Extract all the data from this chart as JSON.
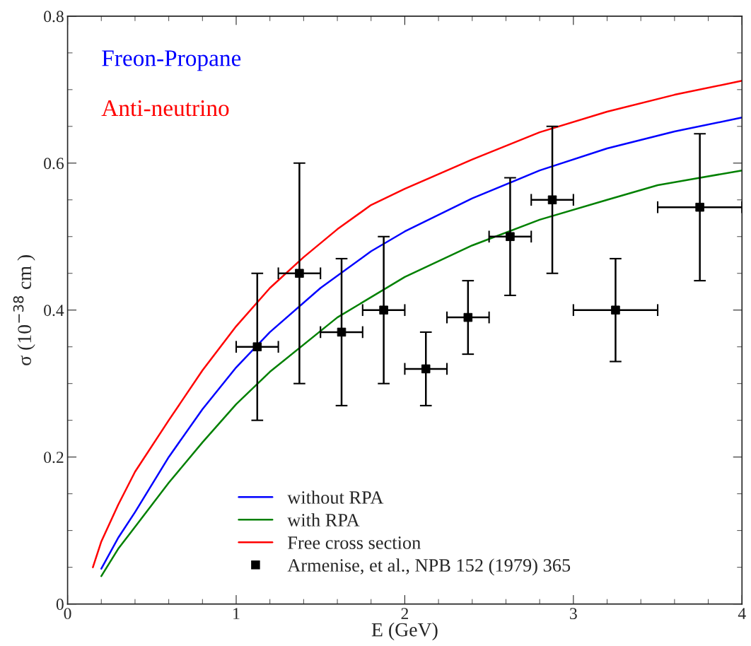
{
  "chart_data": {
    "type": "line",
    "xlabel": "E (GeV)",
    "ylabel": "σ (10$^{−38}$ cm )",
    "xlim": [
      0,
      4
    ],
    "ylim": [
      0,
      0.8
    ],
    "xticks": [
      0,
      1,
      2,
      3,
      4
    ],
    "yticks": [
      0,
      0.2,
      0.4,
      0.6,
      0.8
    ],
    "grid": false,
    "legend": "bottom",
    "line_style": "solid",
    "annotations": [
      "Freon-Propane",
      "Anti-neutrino"
    ],
    "series": [
      {
        "name": "without RPA",
        "color": "#0000ff",
        "marker": "none",
        "x": [
          0.2,
          0.3,
          0.4,
          0.6,
          0.8,
          1.0,
          1.2,
          1.5,
          1.8,
          2.0,
          2.4,
          2.8,
          3.2,
          3.6,
          4.0
        ],
        "values": [
          0.048,
          0.09,
          0.125,
          0.2,
          0.265,
          0.322,
          0.37,
          0.43,
          0.48,
          0.507,
          0.552,
          0.59,
          0.62,
          0.643,
          0.662
        ]
      },
      {
        "name": "with RPA",
        "color": "#008000",
        "marker": "none",
        "x": [
          0.2,
          0.3,
          0.4,
          0.6,
          0.8,
          1.0,
          1.2,
          1.6,
          2.0,
          2.4,
          2.8,
          3.2,
          3.5,
          4.0
        ],
        "values": [
          0.038,
          0.075,
          0.105,
          0.165,
          0.22,
          0.272,
          0.316,
          0.39,
          0.445,
          0.488,
          0.523,
          0.55,
          0.57,
          0.59
        ]
      },
      {
        "name": "Free cross section",
        "color": "#ff0000",
        "marker": "none",
        "x": [
          0.15,
          0.2,
          0.3,
          0.4,
          0.6,
          0.8,
          1.0,
          1.2,
          1.4,
          1.6,
          1.8,
          2.0,
          2.4,
          2.8,
          3.2,
          3.6,
          4.0
        ],
        "values": [
          0.05,
          0.085,
          0.135,
          0.18,
          0.25,
          0.318,
          0.378,
          0.43,
          0.472,
          0.51,
          0.543,
          0.565,
          0.605,
          0.642,
          0.67,
          0.693,
          0.712
        ]
      },
      {
        "name": "Armenise, et al., NPB 152 (1979) 365",
        "color": "#000000",
        "type": "scatter",
        "marker": "square",
        "x": [
          1.125,
          1.375,
          1.625,
          1.875,
          2.125,
          2.375,
          2.625,
          2.875,
          3.25,
          3.75
        ],
        "values": [
          0.35,
          0.45,
          0.37,
          0.4,
          0.32,
          0.39,
          0.5,
          0.55,
          0.4,
          0.54
        ],
        "errors": [
          0.1,
          0.15,
          0.1,
          0.1,
          0.05,
          0.05,
          0.08,
          0.1,
          0.07,
          0.1
        ],
        "xerrors": [
          0.125,
          0.125,
          0.125,
          0.125,
          0.125,
          0.125,
          0.125,
          0.125,
          0.25,
          0.25
        ]
      }
    ]
  }
}
